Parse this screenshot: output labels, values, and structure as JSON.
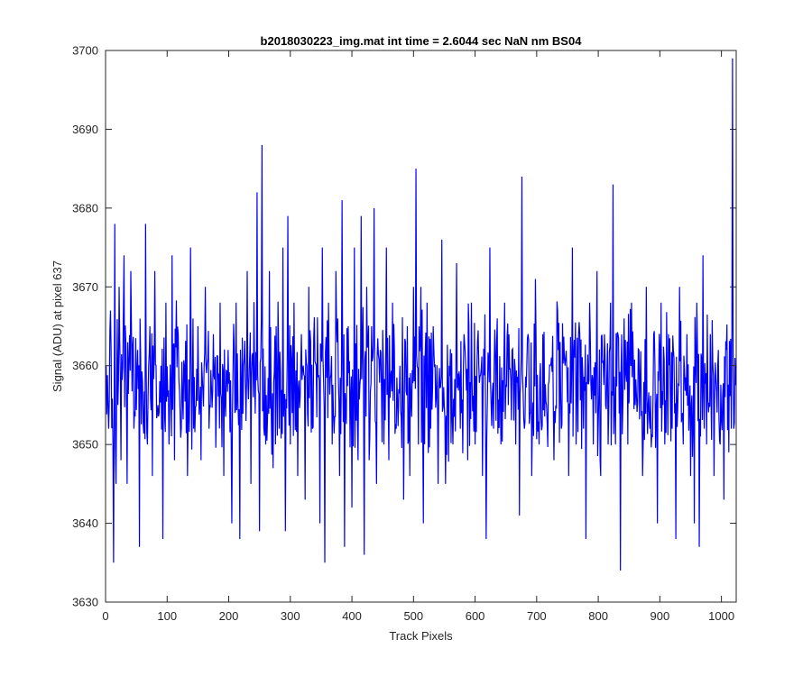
{
  "chart_data": {
    "type": "line",
    "title": "b2018030223_img.mat int time = 2.6044 sec  NaN nm BS04",
    "xlabel": "Track Pixels",
    "ylabel": "Signal (ADU) at pixel 637",
    "xlim": [
      0,
      1024
    ],
    "ylim": [
      3630,
      3700
    ],
    "xticks": [
      0,
      100,
      200,
      300,
      400,
      500,
      600,
      700,
      800,
      900,
      1000
    ],
    "yticks": [
      3630,
      3640,
      3650,
      3660,
      3670,
      3680,
      3690,
      3700
    ],
    "grid": false,
    "legend": "none",
    "series": [
      {
        "color": "#0000ff",
        "x_start": 1,
        "x_step": 1,
        "baseline": 3658,
        "noise_amplitude": 7,
        "points": [
          [
            1,
            3660
          ],
          [
            5,
            3652
          ],
          [
            8,
            3667
          ],
          [
            12,
            3650
          ],
          [
            13,
            3635
          ],
          [
            15,
            3678
          ],
          [
            17,
            3645
          ],
          [
            22,
            3670
          ],
          [
            25,
            3648
          ],
          [
            30,
            3674
          ],
          [
            35,
            3645
          ],
          [
            41,
            3672
          ],
          [
            46,
            3652
          ],
          [
            52,
            3662
          ],
          [
            55,
            3637
          ],
          [
            60,
            3658
          ],
          [
            65,
            3678
          ],
          [
            68,
            3650
          ],
          [
            72,
            3665
          ],
          [
            76,
            3646
          ],
          [
            80,
            3672
          ],
          [
            85,
            3655
          ],
          [
            90,
            3660
          ],
          [
            93,
            3638
          ],
          [
            98,
            3668
          ],
          [
            103,
            3650
          ],
          [
            108,
            3674
          ],
          [
            112,
            3648
          ],
          [
            118,
            3664
          ],
          [
            123,
            3652
          ],
          [
            128,
            3660
          ],
          [
            133,
            3646
          ],
          [
            138,
            3675
          ],
          [
            143,
            3652
          ],
          [
            150,
            3665
          ],
          [
            155,
            3648
          ],
          [
            162,
            3670
          ],
          [
            168,
            3652
          ],
          [
            175,
            3664
          ],
          [
            180,
            3655
          ],
          [
            186,
            3668
          ],
          [
            192,
            3646
          ],
          [
            199,
            3662
          ],
          [
            205,
            3640
          ],
          [
            212,
            3668
          ],
          [
            218,
            3638
          ],
          [
            224,
            3660
          ],
          [
            230,
            3672
          ],
          [
            236,
            3645
          ],
          [
            240,
            3656
          ],
          [
            246,
            3682
          ],
          [
            250,
            3639
          ],
          [
            254,
            3688
          ],
          [
            260,
            3650
          ],
          [
            266,
            3672
          ],
          [
            272,
            3647
          ],
          [
            277,
            3665
          ],
          [
            282,
            3652
          ],
          [
            288,
            3675
          ],
          [
            292,
            3639
          ],
          [
            296,
            3679
          ],
          [
            300,
            3650
          ],
          [
            306,
            3668
          ],
          [
            312,
            3646
          ],
          [
            318,
            3664
          ],
          [
            324,
            3643
          ],
          [
            330,
            3670
          ],
          [
            336,
            3652
          ],
          [
            342,
            3660
          ],
          [
            348,
            3640
          ],
          [
            352,
            3675
          ],
          [
            356,
            3635
          ],
          [
            362,
            3668
          ],
          [
            368,
            3650
          ],
          [
            374,
            3672
          ],
          [
            380,
            3646
          ],
          [
            384,
            3681
          ],
          [
            388,
            3637
          ],
          [
            394,
            3665
          ],
          [
            400,
            3642
          ],
          [
            404,
            3675
          ],
          [
            410,
            3648
          ],
          [
            415,
            3679
          ],
          [
            420,
            3636
          ],
          [
            424,
            3670
          ],
          [
            428,
            3648
          ],
          [
            432,
            3665
          ],
          [
            436,
            3680
          ],
          [
            440,
            3645
          ],
          [
            446,
            3662
          ],
          [
            452,
            3650
          ],
          [
            456,
            3675
          ],
          [
            460,
            3648
          ],
          [
            466,
            3668
          ],
          [
            472,
            3652
          ],
          [
            478,
            3660
          ],
          [
            484,
            3643
          ],
          [
            490,
            3665
          ],
          [
            494,
            3646
          ],
          [
            500,
            3670
          ],
          [
            504,
            3685
          ],
          [
            508,
            3650
          ],
          [
            512,
            3670
          ],
          [
            516,
            3640
          ],
          [
            522,
            3668
          ],
          [
            528,
            3652
          ],
          [
            534,
            3660
          ],
          [
            540,
            3645
          ],
          [
            546,
            3676
          ],
          [
            552,
            3645
          ],
          [
            558,
            3660
          ],
          [
            564,
            3650
          ],
          [
            570,
            3673
          ],
          [
            576,
            3652
          ],
          [
            582,
            3664
          ],
          [
            588,
            3648
          ],
          [
            594,
            3668
          ],
          [
            600,
            3650
          ],
          [
            606,
            3660
          ],
          [
            612,
            3646
          ],
          [
            618,
            3638
          ],
          [
            624,
            3675
          ],
          [
            630,
            3652
          ],
          [
            636,
            3666
          ],
          [
            642,
            3650
          ],
          [
            648,
            3668
          ],
          [
            654,
            3655
          ],
          [
            660,
            3662
          ],
          [
            666,
            3650
          ],
          [
            672,
            3641
          ],
          [
            676,
            3684
          ],
          [
            680,
            3652
          ],
          [
            686,
            3664
          ],
          [
            692,
            3646
          ],
          [
            698,
            3671
          ],
          [
            704,
            3650
          ],
          [
            710,
            3664
          ],
          [
            716,
            3655
          ],
          [
            722,
            3660
          ],
          [
            728,
            3648
          ],
          [
            734,
            3667
          ],
          [
            740,
            3652
          ],
          [
            746,
            3660
          ],
          [
            752,
            3646
          ],
          [
            758,
            3675
          ],
          [
            764,
            3650
          ],
          [
            770,
            3664
          ],
          [
            776,
            3652
          ],
          [
            780,
            3638
          ],
          [
            786,
            3668
          ],
          [
            792,
            3650
          ],
          [
            798,
            3672
          ],
          [
            804,
            3646
          ],
          [
            810,
            3664
          ],
          [
            816,
            3650
          ],
          [
            820,
            3668
          ],
          [
            824,
            3683
          ],
          [
            828,
            3650
          ],
          [
            832,
            3664
          ],
          [
            836,
            3634
          ],
          [
            842,
            3666
          ],
          [
            848,
            3650
          ],
          [
            854,
            3668
          ],
          [
            860,
            3655
          ],
          [
            866,
            3662
          ],
          [
            872,
            3646
          ],
          [
            878,
            3670
          ],
          [
            884,
            3652
          ],
          [
            890,
            3664
          ],
          [
            896,
            3640
          ],
          [
            902,
            3668
          ],
          [
            908,
            3650
          ],
          [
            914,
            3664
          ],
          [
            920,
            3652
          ],
          [
            926,
            3638
          ],
          [
            932,
            3670
          ],
          [
            938,
            3650
          ],
          [
            944,
            3664
          ],
          [
            950,
            3646
          ],
          [
            956,
            3640
          ],
          [
            960,
            3668
          ],
          [
            964,
            3637
          ],
          [
            970,
            3674
          ],
          [
            976,
            3650
          ],
          [
            982,
            3664
          ],
          [
            988,
            3646
          ],
          [
            994,
            3660
          ],
          [
            998,
            3650
          ],
          [
            1004,
            3643
          ],
          [
            1008,
            3662
          ],
          [
            1012,
            3649
          ],
          [
            1016,
            3652
          ],
          [
            1018,
            3699
          ],
          [
            1020,
            3652
          ],
          [
            1022,
            3661
          ],
          [
            1024,
            3660
          ]
        ]
      }
    ]
  }
}
